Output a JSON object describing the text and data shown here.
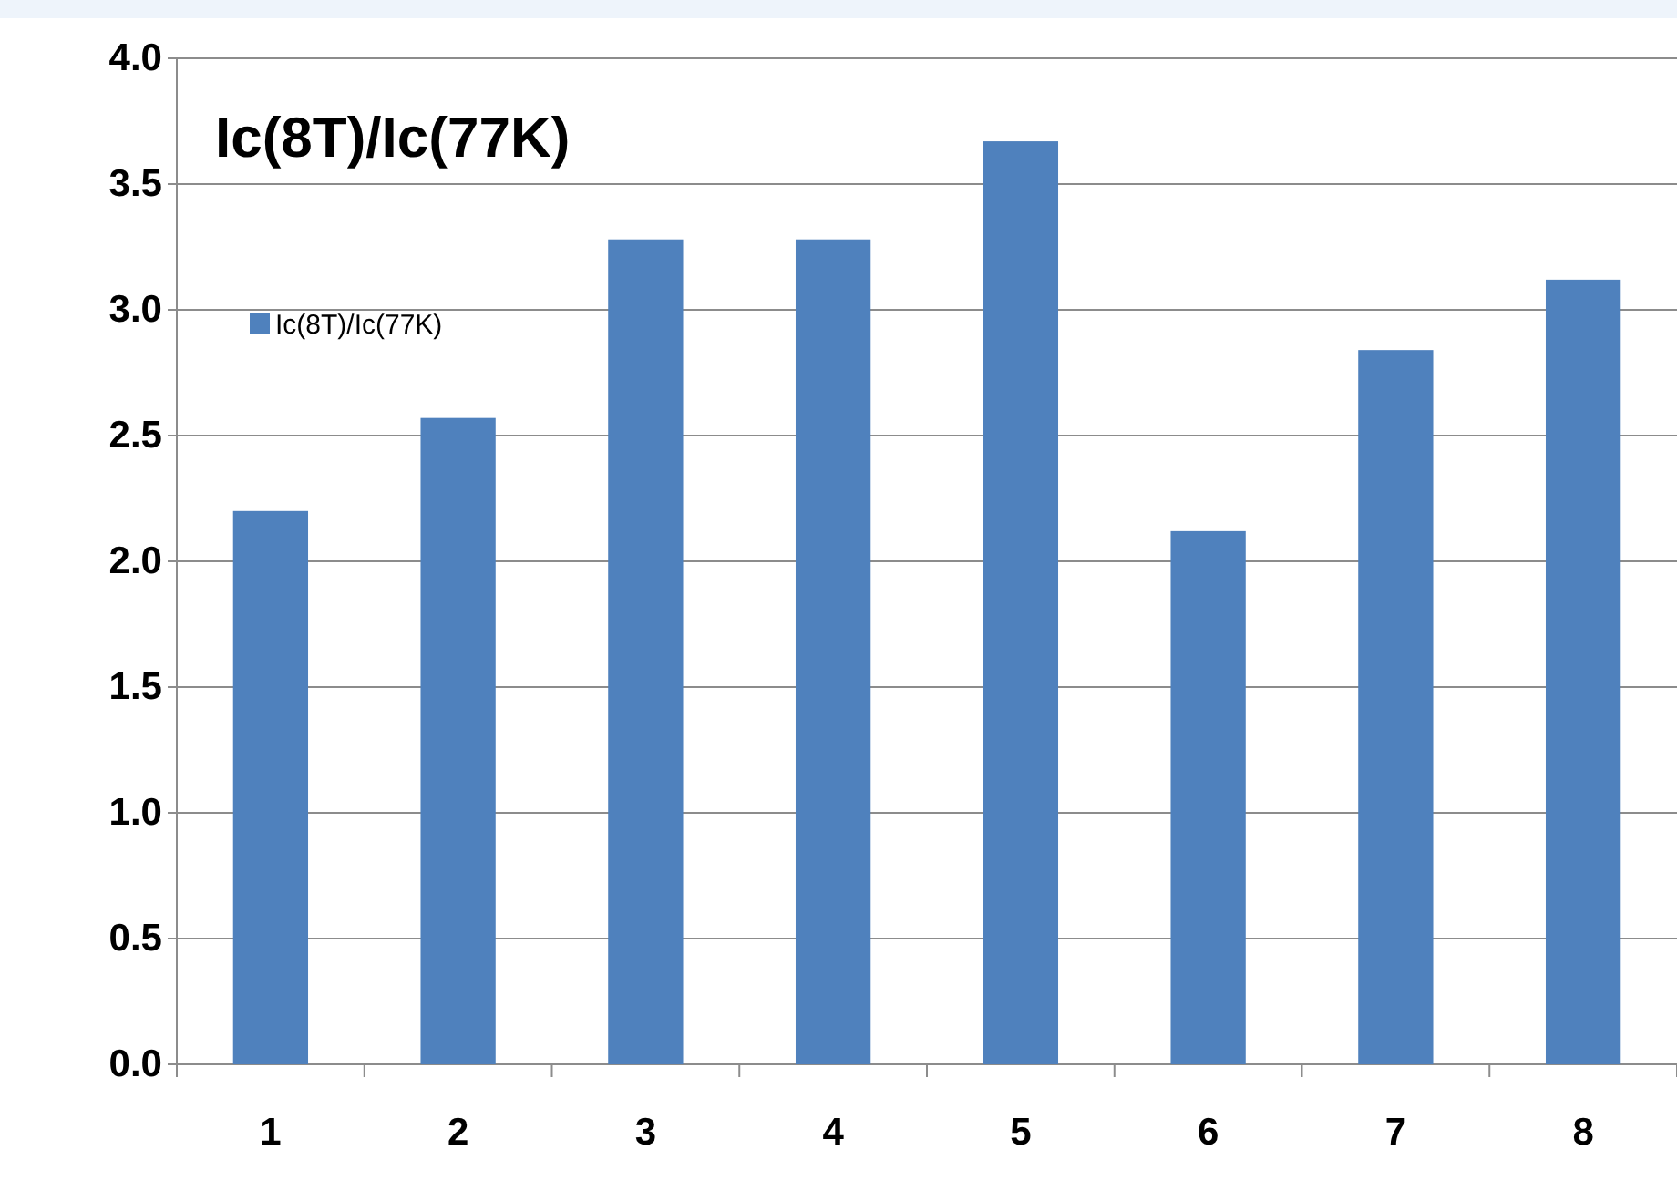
{
  "chart_data": {
    "type": "bar",
    "title": "Ic(8T)/Ic(77K)",
    "categories": [
      "1",
      "2",
      "3",
      "4",
      "5",
      "6",
      "7",
      "8"
    ],
    "series": [
      {
        "name": "Ic(8T)/Ic(77K)",
        "color": "#4f81bd",
        "values": [
          2.2,
          2.57,
          3.28,
          3.28,
          3.67,
          2.12,
          2.84,
          3.12
        ]
      }
    ],
    "ylim": [
      0,
      4
    ],
    "yticks": [
      {
        "value": 0,
        "label": "0.0"
      },
      {
        "value": 0.5,
        "label": "0.5"
      },
      {
        "value": 1,
        "label": "1.0"
      },
      {
        "value": 1.5,
        "label": "1.5"
      },
      {
        "value": 2,
        "label": "2.0"
      },
      {
        "value": 2.5,
        "label": "2.5"
      },
      {
        "value": 3,
        "label": "3.0"
      },
      {
        "value": 3.5,
        "label": "3.5"
      },
      {
        "value": 4,
        "label": "4.0"
      }
    ],
    "grid": "y",
    "legend": "top left"
  }
}
